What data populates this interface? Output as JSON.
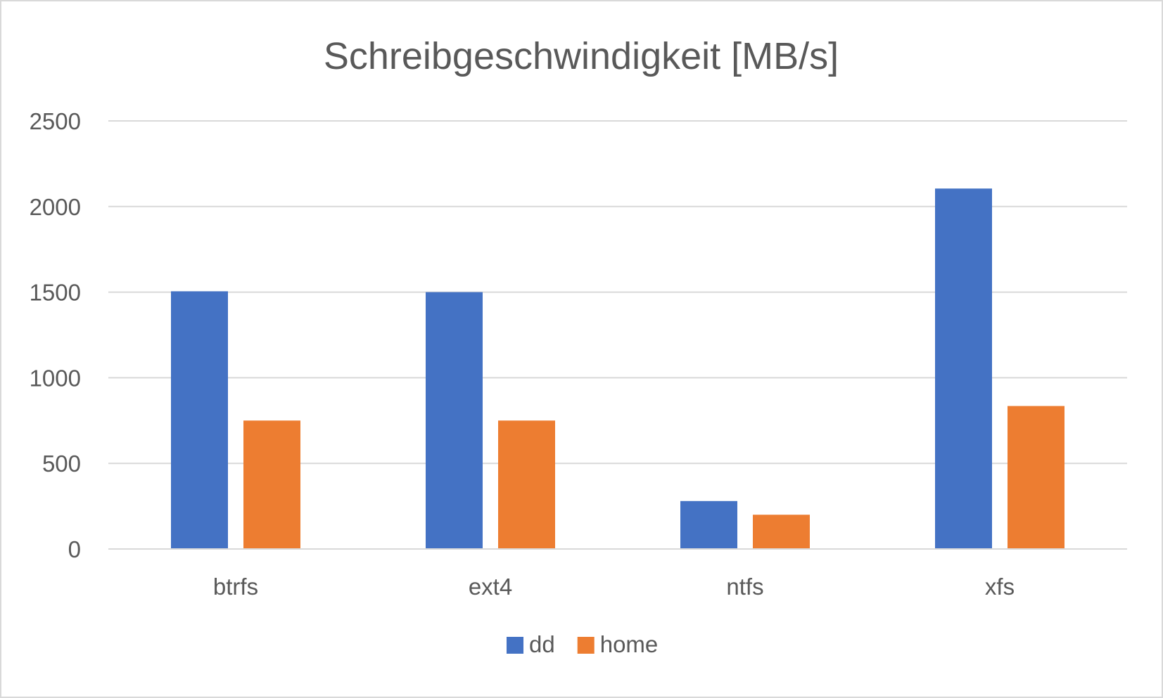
{
  "chart_data": {
    "type": "bar",
    "title": "Schreibgeschwindigkeit [MB/s]",
    "xlabel": "",
    "ylabel": "",
    "categories": [
      "btrfs",
      "ext4",
      "ntfs",
      "xfs"
    ],
    "series": [
      {
        "name": "dd",
        "color": "#4472c4",
        "values": [
          1505,
          1500,
          280,
          2105
        ]
      },
      {
        "name": "home",
        "color": "#ed7d31",
        "values": [
          750,
          750,
          200,
          835
        ]
      }
    ],
    "ylim": [
      0,
      2500
    ],
    "yticks": [
      0,
      500,
      1000,
      1500,
      2000,
      2500
    ],
    "grid": true,
    "legend_position": "bottom"
  }
}
